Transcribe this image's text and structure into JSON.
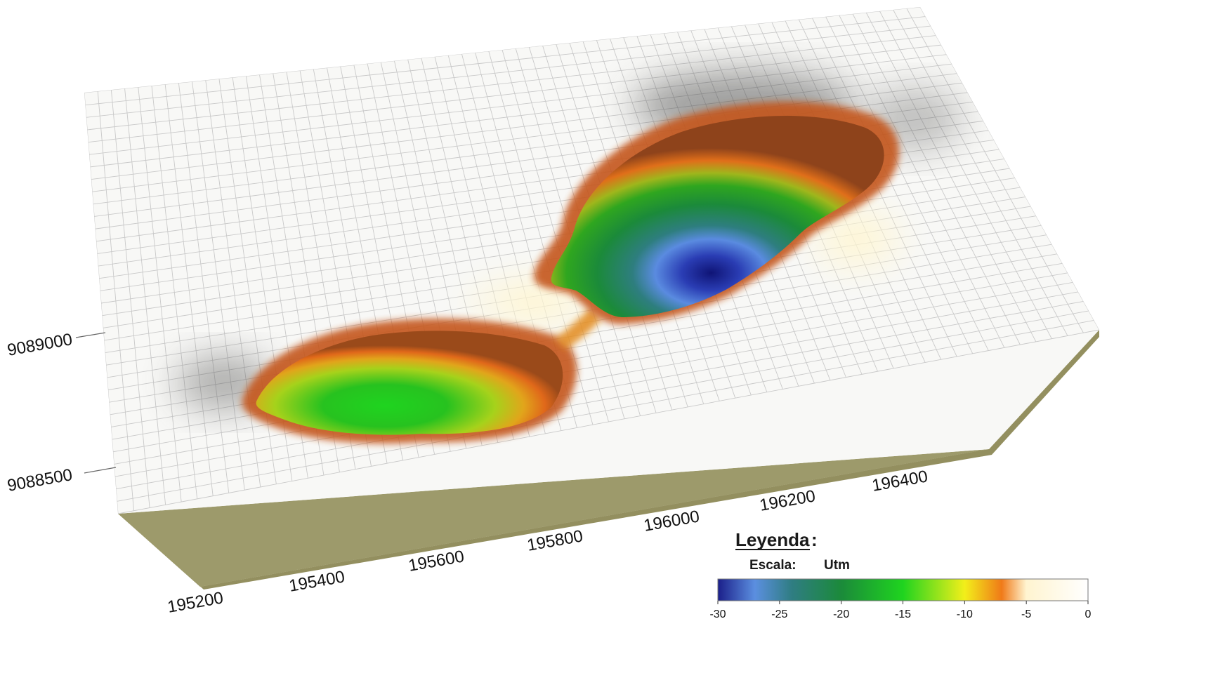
{
  "chart_data": {
    "type": "surface-3d",
    "x_axis": {
      "ticks": [
        "195200",
        "195400",
        "195600",
        "195800",
        "196000",
        "196200",
        "196400"
      ]
    },
    "y_axis": {
      "ticks": [
        "9088500",
        "9089000"
      ]
    },
    "legend": {
      "title": "Leyenda",
      "title_suffix": ":",
      "scale_label": "Escala:",
      "units": "Utm",
      "ticks": [
        "-30",
        "-25",
        "-20",
        "-15",
        "-10",
        "-5",
        "0"
      ],
      "range": [
        -30,
        0
      ]
    },
    "colorscale": [
      {
        "value": -30,
        "color": "#1b1f8a"
      },
      {
        "value": -27,
        "color": "#5b8fe0"
      },
      {
        "value": -24,
        "color": "#2f7d82"
      },
      {
        "value": -20,
        "color": "#1b8a3a"
      },
      {
        "value": -15,
        "color": "#1fd41f"
      },
      {
        "value": -10,
        "color": "#f2ef1a"
      },
      {
        "value": -7,
        "color": "#f07a18"
      },
      {
        "value": -5,
        "color": "#fff4d0"
      },
      {
        "value": 0,
        "color": "#ffffff"
      }
    ],
    "colors": {
      "mesh_surface": "#f7f7f5",
      "mesh_lines": "#c9c9c9",
      "block_side": "#9c986a",
      "block_side_dark": "#8f8b5c"
    },
    "surface_features": [
      {
        "name": "west-pit",
        "min_depth": -16
      },
      {
        "name": "east-pit",
        "min_depth": -30
      }
    ]
  }
}
